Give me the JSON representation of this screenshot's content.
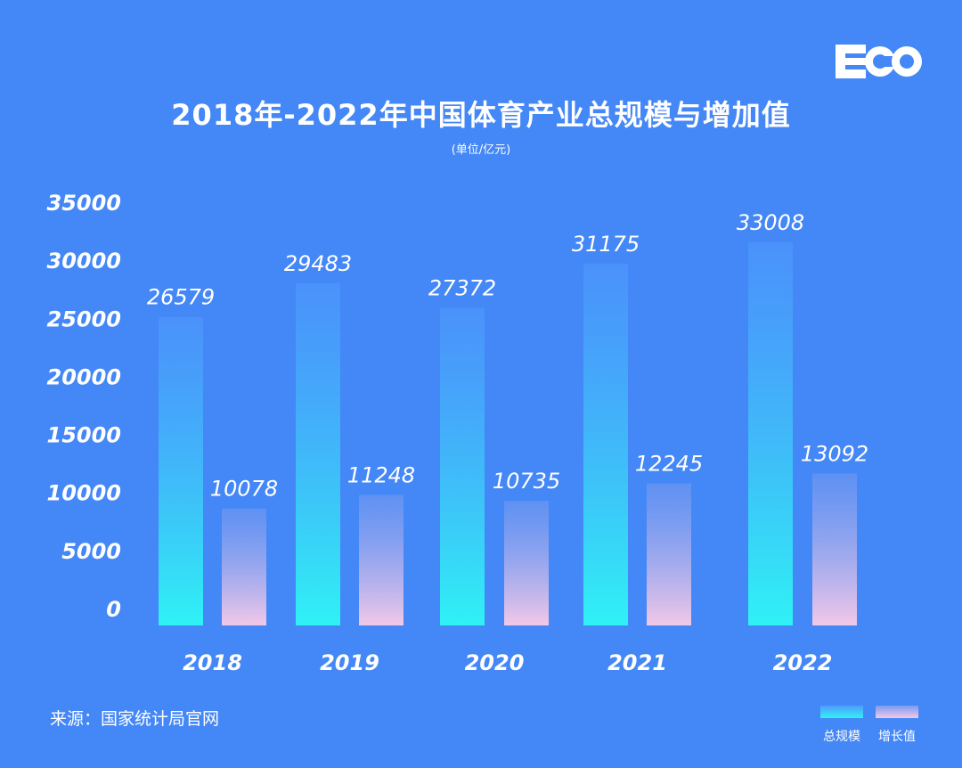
{
  "brand": {
    "logo_text": "ECO"
  },
  "colors": {
    "background": "#4487f6",
    "total_bottom": "#2ff2f5",
    "total_top": "#4f9bff",
    "add_bottom": "#f2c8e8",
    "add_top": "#7a9cf0"
  },
  "chart_data": {
    "type": "bar",
    "title": "2018年-2022年中国体育产业总规模与增加值",
    "subtitle": "(单位/亿元)",
    "categories": [
      "2018",
      "2019",
      "2020",
      "2021",
      "2022"
    ],
    "series": [
      {
        "name": "总规模",
        "values": [
          26579,
          29483,
          27372,
          31175,
          33008
        ]
      },
      {
        "name": "增长值",
        "values": [
          10078,
          11248,
          10735,
          12245,
          13092
        ]
      }
    ],
    "yticks": [
      0,
      5000,
      10000,
      15000,
      20000,
      25000,
      30000,
      35000
    ],
    "ylim": [
      0,
      35000
    ],
    "legend_position": "bottom-right",
    "grid": false
  },
  "footer": {
    "source": "来源：国家统计局官网"
  }
}
